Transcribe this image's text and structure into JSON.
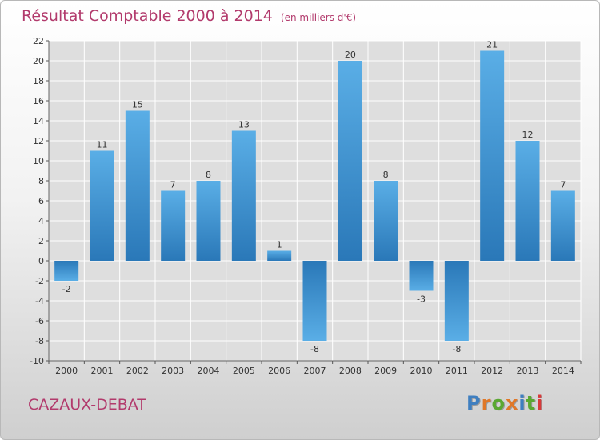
{
  "header": {
    "title": "Résultat Comptable 2000 à 2014",
    "unit": "(en milliers d'€)"
  },
  "footer": {
    "commune": "CAZAUX-DEBAT",
    "logo": {
      "text": "Proxiti",
      "letter_colors": [
        "#3f7fc0",
        "#e07828",
        "#5aa832",
        "#e07828",
        "#3f7fc0",
        "#5aa832",
        "#d83a3a"
      ]
    }
  },
  "colors": {
    "bar_top": "#5aaee6",
    "bar_bottom": "#2a78b8",
    "title": "#b23a6c",
    "grid": "#ffffff"
  },
  "chart_data": {
    "type": "bar",
    "title": "Résultat Comptable 2000 à 2014",
    "subtitle": "(en milliers d'€)",
    "categories": [
      "2000",
      "2001",
      "2002",
      "2003",
      "2004",
      "2005",
      "2006",
      "2007",
      "2008",
      "2009",
      "2010",
      "2011",
      "2012",
      "2013",
      "2014"
    ],
    "values": [
      -2,
      11,
      15,
      7,
      8,
      13,
      1,
      -8,
      20,
      8,
      -3,
      -8,
      21,
      12,
      7
    ],
    "ylim": [
      -10,
      22
    ],
    "yticks": [
      -10,
      -8,
      -6,
      -4,
      -2,
      0,
      2,
      4,
      6,
      8,
      10,
      12,
      14,
      16,
      18,
      20,
      22
    ],
    "grid": true,
    "legend": "none"
  }
}
